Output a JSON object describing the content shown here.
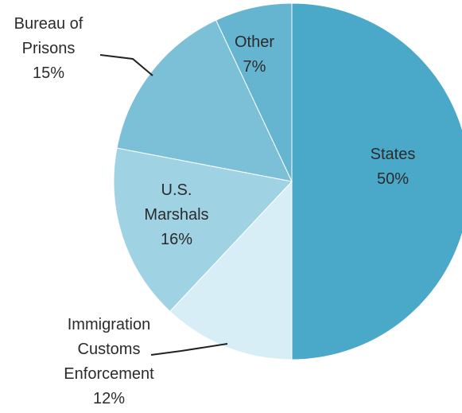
{
  "chart_data": {
    "type": "pie",
    "title": "",
    "start_angle_deg": 0,
    "direction": "clockwise",
    "slices": [
      {
        "label_lines": [
          "States",
          "50%"
        ],
        "category": "States",
        "value": 50,
        "color": "#4aa8c8"
      },
      {
        "label_lines": [
          "Immigration",
          "Customs",
          "Enforcement",
          "12%"
        ],
        "category": "Immigration Customs Enforcement",
        "value": 12,
        "color": "#d7eef6"
      },
      {
        "label_lines": [
          "U.S.",
          "Marshals",
          "16%"
        ],
        "category": "U.S. Marshals",
        "value": 16,
        "color": "#9fd2e3"
      },
      {
        "label_lines": [
          "Bureau of",
          "Prisons",
          "15%"
        ],
        "category": "Bureau of Prisons",
        "value": 15,
        "color": "#7cc0d8"
      },
      {
        "label_lines": [
          "Other",
          "7%"
        ],
        "category": "Other",
        "value": 7,
        "color": "#65b4d0"
      }
    ]
  }
}
